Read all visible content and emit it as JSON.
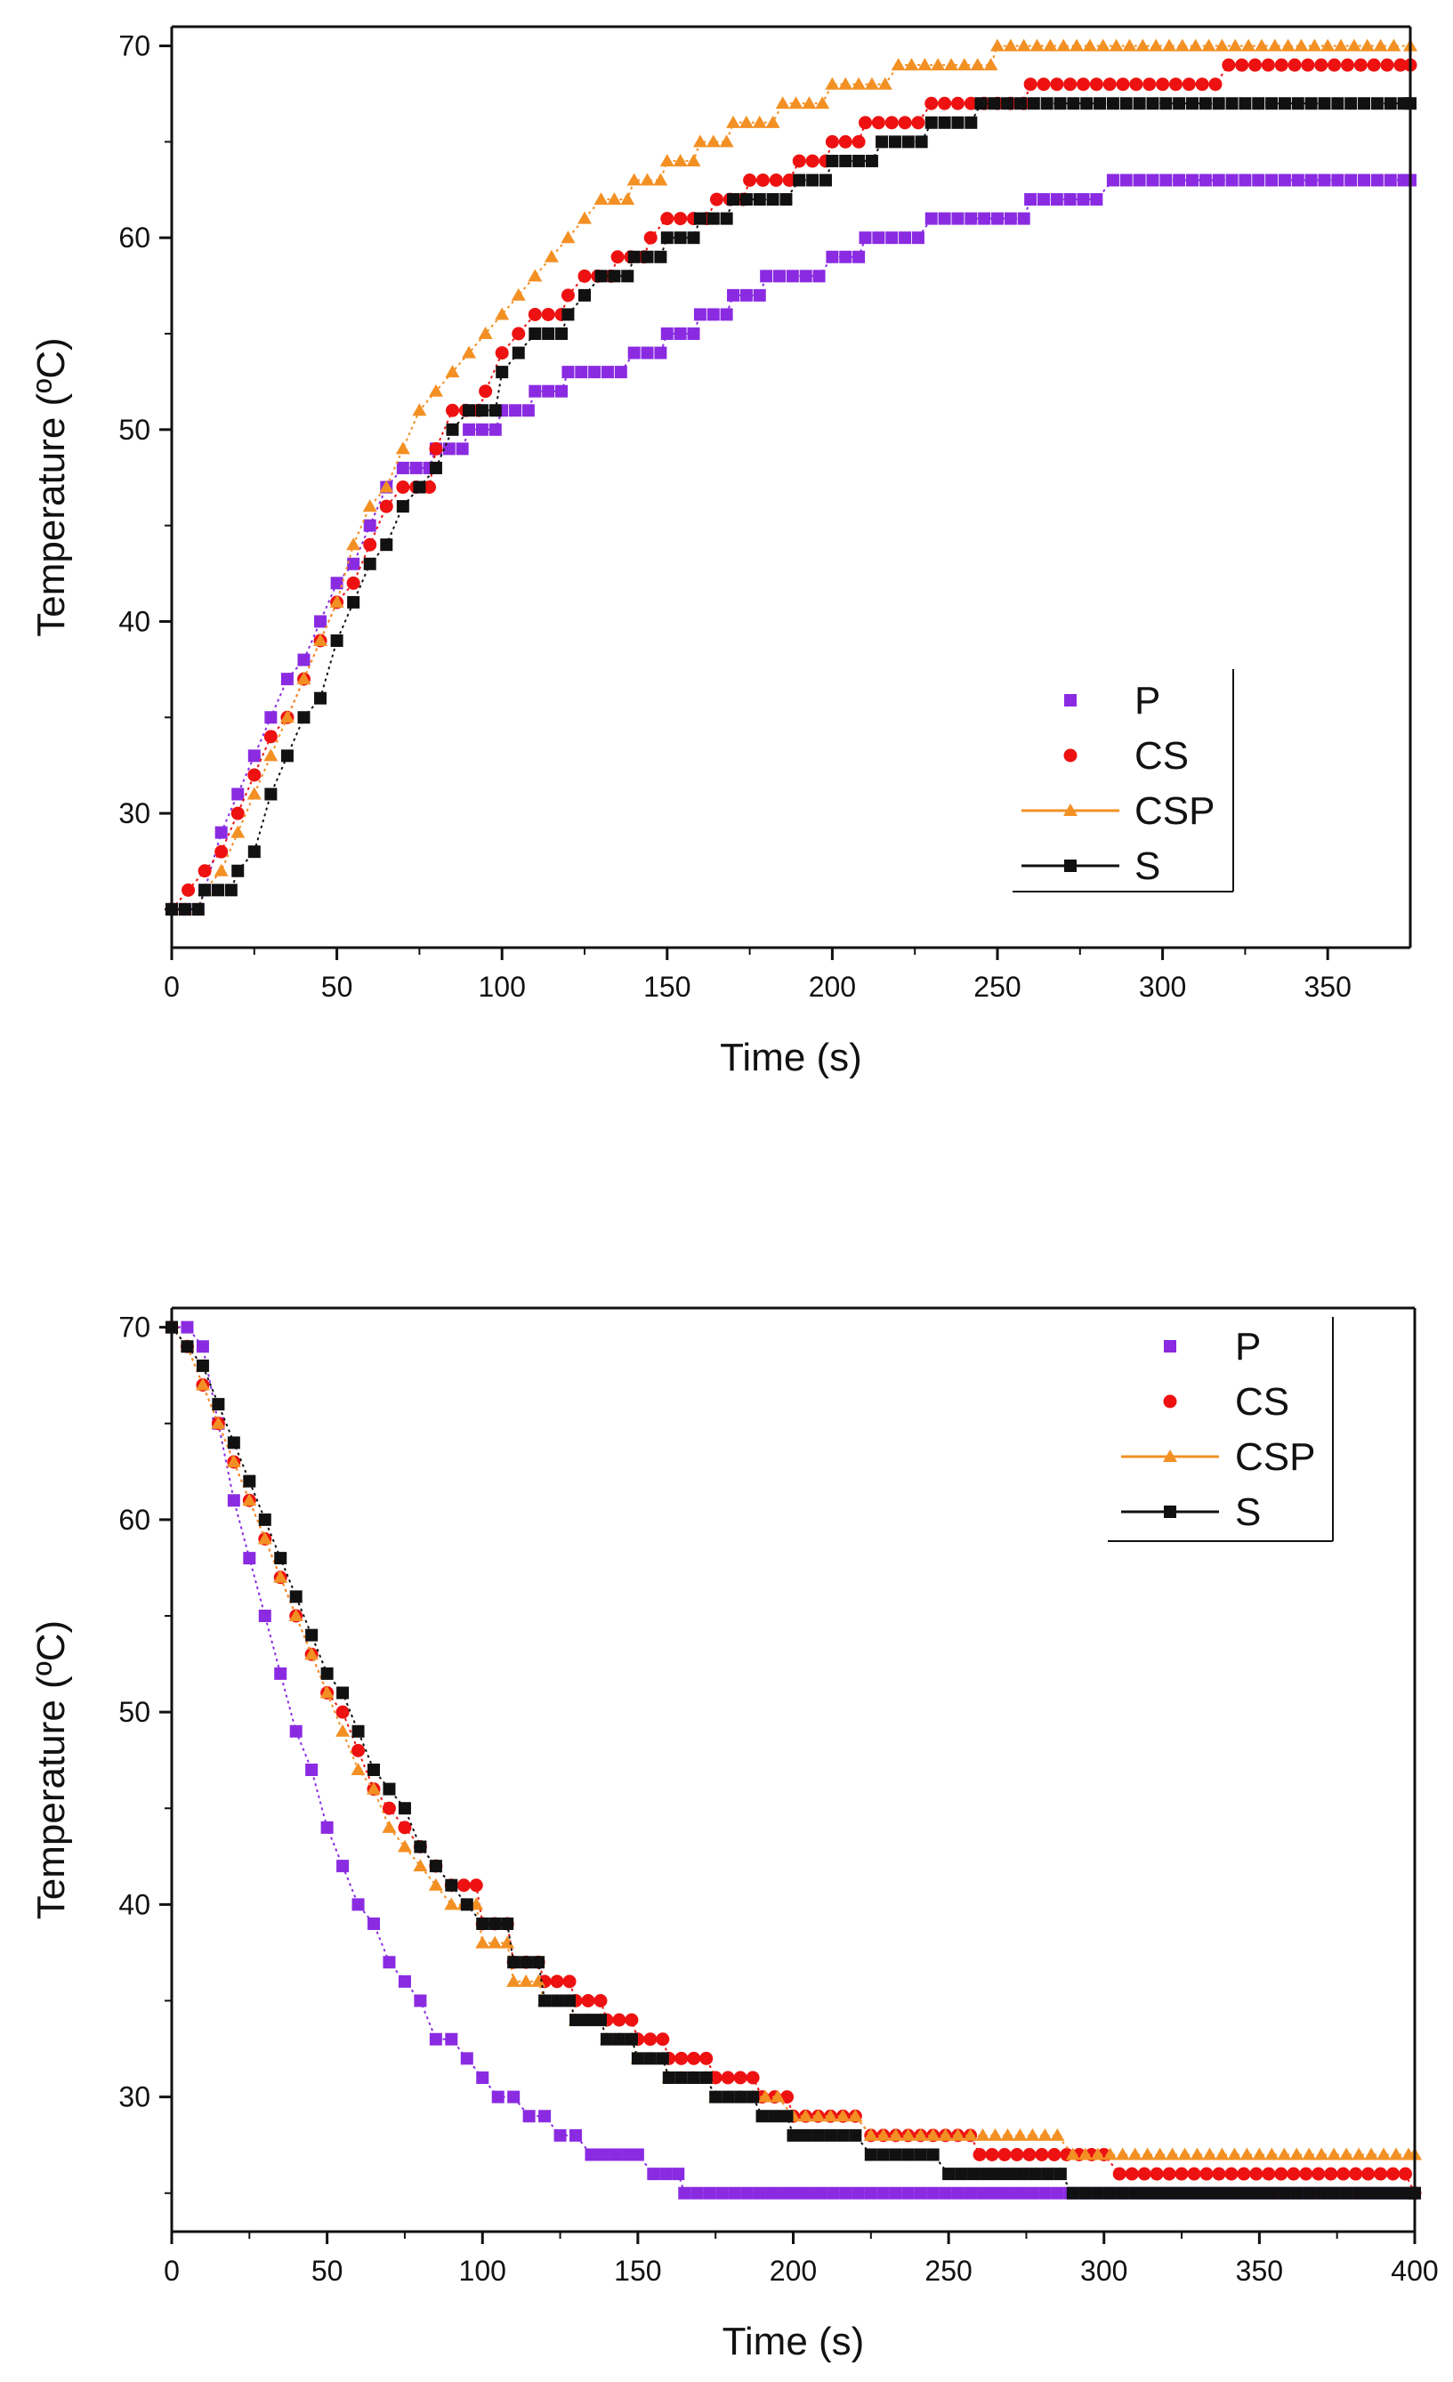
{
  "chart_data": [
    {
      "type": "line",
      "title": "",
      "xlabel": "Time (s)",
      "ylabel": "Temperature (ºC)",
      "xlim": [
        0,
        375
      ],
      "ylim": [
        23,
        71
      ],
      "xticks": [
        0,
        50,
        100,
        150,
        200,
        250,
        300,
        350
      ],
      "yticks": [
        30,
        40,
        50,
        60,
        70
      ],
      "xtick_labels": [
        "0",
        "50",
        "100",
        "150",
        "200",
        "250",
        "300",
        "350"
      ],
      "ytick_labels": [
        "30",
        "40",
        "50",
        "60",
        "70"
      ],
      "legend_position": "lower-right",
      "series": [
        {
          "name": "P",
          "color": "#8a2be2",
          "marker": "square",
          "points": [
            [
              0,
              25
            ],
            [
              10,
              26
            ],
            [
              15,
              29
            ],
            [
              20,
              31
            ],
            [
              25,
              33
            ],
            [
              30,
              35
            ],
            [
              35,
              37
            ],
            [
              40,
              38
            ],
            [
              45,
              40
            ],
            [
              50,
              42
            ],
            [
              55,
              43
            ],
            [
              60,
              45
            ],
            [
              65,
              47
            ],
            [
              70,
              48
            ],
            [
              80,
              49
            ],
            [
              90,
              50
            ],
            [
              100,
              51
            ],
            [
              110,
              52
            ],
            [
              120,
              53
            ],
            [
              140,
              54
            ],
            [
              150,
              55
            ],
            [
              160,
              56
            ],
            [
              170,
              57
            ],
            [
              180,
              58
            ],
            [
              200,
              59
            ],
            [
              210,
              60
            ],
            [
              230,
              61
            ],
            [
              260,
              62
            ],
            [
              285,
              63
            ],
            [
              375,
              63
            ]
          ]
        },
        {
          "name": "CS",
          "color": "#ee1111",
          "marker": "circle",
          "points": [
            [
              0,
              25
            ],
            [
              5,
              26
            ],
            [
              10,
              27
            ],
            [
              15,
              28
            ],
            [
              20,
              30
            ],
            [
              25,
              32
            ],
            [
              30,
              34
            ],
            [
              35,
              35
            ],
            [
              40,
              37
            ],
            [
              45,
              39
            ],
            [
              50,
              41
            ],
            [
              55,
              42
            ],
            [
              60,
              44
            ],
            [
              65,
              46
            ],
            [
              70,
              47
            ],
            [
              80,
              49
            ],
            [
              85,
              51
            ],
            [
              95,
              52
            ],
            [
              100,
              54
            ],
            [
              105,
              55
            ],
            [
              110,
              56
            ],
            [
              120,
              57
            ],
            [
              125,
              58
            ],
            [
              135,
              59
            ],
            [
              145,
              60
            ],
            [
              150,
              61
            ],
            [
              165,
              62
            ],
            [
              175,
              63
            ],
            [
              190,
              64
            ],
            [
              200,
              65
            ],
            [
              210,
              66
            ],
            [
              230,
              67
            ],
            [
              260,
              68
            ],
            [
              320,
              69
            ],
            [
              375,
              69
            ]
          ]
        },
        {
          "name": "CSP",
          "color": "#f39024",
          "marker": "triangle",
          "points": [
            [
              0,
              25
            ],
            [
              10,
              26
            ],
            [
              15,
              27
            ],
            [
              20,
              29
            ],
            [
              25,
              31
            ],
            [
              30,
              33
            ],
            [
              35,
              35
            ],
            [
              40,
              37
            ],
            [
              45,
              39
            ],
            [
              50,
              41
            ],
            [
              55,
              44
            ],
            [
              60,
              46
            ],
            [
              65,
              47
            ],
            [
              70,
              49
            ],
            [
              75,
              51
            ],
            [
              80,
              52
            ],
            [
              85,
              53
            ],
            [
              90,
              54
            ],
            [
              95,
              55
            ],
            [
              100,
              56
            ],
            [
              105,
              57
            ],
            [
              110,
              58
            ],
            [
              115,
              59
            ],
            [
              120,
              60
            ],
            [
              125,
              61
            ],
            [
              130,
              62
            ],
            [
              140,
              63
            ],
            [
              150,
              64
            ],
            [
              160,
              65
            ],
            [
              170,
              66
            ],
            [
              185,
              67
            ],
            [
              200,
              68
            ],
            [
              220,
              69
            ],
            [
              250,
              70
            ],
            [
              375,
              70
            ]
          ]
        },
        {
          "name": "S",
          "color": "#111111",
          "marker": "square",
          "points": [
            [
              0,
              25
            ],
            [
              10,
              26
            ],
            [
              20,
              27
            ],
            [
              25,
              28
            ],
            [
              30,
              31
            ],
            [
              35,
              33
            ],
            [
              40,
              35
            ],
            [
              45,
              36
            ],
            [
              50,
              39
            ],
            [
              55,
              41
            ],
            [
              60,
              43
            ],
            [
              65,
              44
            ],
            [
              70,
              46
            ],
            [
              75,
              47
            ],
            [
              80,
              48
            ],
            [
              85,
              50
            ],
            [
              90,
              51
            ],
            [
              100,
              53
            ],
            [
              105,
              54
            ],
            [
              110,
              55
            ],
            [
              120,
              56
            ],
            [
              125,
              57
            ],
            [
              130,
              58
            ],
            [
              140,
              59
            ],
            [
              150,
              60
            ],
            [
              160,
              61
            ],
            [
              170,
              62
            ],
            [
              190,
              63
            ],
            [
              200,
              64
            ],
            [
              215,
              65
            ],
            [
              230,
              66
            ],
            [
              245,
              67
            ],
            [
              375,
              67
            ]
          ]
        }
      ]
    },
    {
      "type": "line",
      "title": "",
      "xlabel": "Time (s)",
      "ylabel": "Temperature (ºC)",
      "xlim": [
        0,
        400
      ],
      "ylim": [
        23,
        71
      ],
      "xticks": [
        0,
        50,
        100,
        150,
        200,
        250,
        300,
        350,
        400
      ],
      "yticks": [
        30,
        40,
        50,
        60,
        70
      ],
      "xtick_labels": [
        "0",
        "50",
        "100",
        "150",
        "200",
        "250",
        "300",
        "350",
        "400"
      ],
      "ytick_labels": [
        "30",
        "40",
        "50",
        "60",
        "70"
      ],
      "legend_position": "top-right",
      "series": [
        {
          "name": "P",
          "color": "#8a2be2",
          "marker": "square",
          "points": [
            [
              0,
              70
            ],
            [
              5,
              70
            ],
            [
              10,
              69
            ],
            [
              15,
              65
            ],
            [
              20,
              61
            ],
            [
              25,
              58
            ],
            [
              30,
              55
            ],
            [
              35,
              52
            ],
            [
              40,
              49
            ],
            [
              45,
              47
            ],
            [
              50,
              44
            ],
            [
              55,
              42
            ],
            [
              60,
              40
            ],
            [
              65,
              39
            ],
            [
              70,
              37
            ],
            [
              75,
              36
            ],
            [
              80,
              35
            ],
            [
              85,
              33
            ],
            [
              90,
              33
            ],
            [
              95,
              32
            ],
            [
              100,
              31
            ],
            [
              105,
              30
            ],
            [
              110,
              30
            ],
            [
              115,
              29
            ],
            [
              120,
              29
            ],
            [
              125,
              28
            ],
            [
              130,
              28
            ],
            [
              135,
              27
            ],
            [
              150,
              27
            ],
            [
              155,
              26
            ],
            [
              165,
              25
            ],
            [
              400,
              25
            ]
          ]
        },
        {
          "name": "CS",
          "color": "#ee1111",
          "marker": "circle",
          "points": [
            [
              0,
              70
            ],
            [
              5,
              69
            ],
            [
              10,
              67
            ],
            [
              15,
              65
            ],
            [
              20,
              63
            ],
            [
              25,
              61
            ],
            [
              30,
              59
            ],
            [
              35,
              57
            ],
            [
              40,
              55
            ],
            [
              45,
              53
            ],
            [
              50,
              51
            ],
            [
              55,
              50
            ],
            [
              60,
              48
            ],
            [
              65,
              46
            ],
            [
              70,
              45
            ],
            [
              75,
              44
            ],
            [
              80,
              43
            ],
            [
              85,
              42
            ],
            [
              90,
              41
            ],
            [
              100,
              39
            ],
            [
              110,
              37
            ],
            [
              120,
              36
            ],
            [
              130,
              35
            ],
            [
              140,
              34
            ],
            [
              150,
              33
            ],
            [
              160,
              32
            ],
            [
              175,
              31
            ],
            [
              190,
              30
            ],
            [
              200,
              29
            ],
            [
              225,
              28
            ],
            [
              260,
              27
            ],
            [
              305,
              26
            ],
            [
              385,
              26
            ],
            [
              400,
              25
            ]
          ]
        },
        {
          "name": "CSP",
          "color": "#f39024",
          "marker": "triangle",
          "points": [
            [
              0,
              70
            ],
            [
              5,
              69
            ],
            [
              10,
              67
            ],
            [
              15,
              65
            ],
            [
              20,
              63
            ],
            [
              25,
              61
            ],
            [
              30,
              59
            ],
            [
              35,
              57
            ],
            [
              40,
              55
            ],
            [
              45,
              53
            ],
            [
              50,
              51
            ],
            [
              55,
              49
            ],
            [
              60,
              47
            ],
            [
              65,
              46
            ],
            [
              70,
              44
            ],
            [
              75,
              43
            ],
            [
              80,
              42
            ],
            [
              85,
              41
            ],
            [
              90,
              40
            ],
            [
              100,
              38
            ],
            [
              110,
              36
            ],
            [
              120,
              35
            ],
            [
              130,
              34
            ],
            [
              140,
              33
            ],
            [
              150,
              32
            ],
            [
              160,
              31
            ],
            [
              175,
              30
            ],
            [
              200,
              29
            ],
            [
              225,
              28
            ],
            [
              290,
              27
            ],
            [
              400,
              27
            ]
          ]
        },
        {
          "name": "S",
          "color": "#111111",
          "marker": "square",
          "points": [
            [
              0,
              70
            ],
            [
              5,
              69
            ],
            [
              10,
              68
            ],
            [
              15,
              66
            ],
            [
              20,
              64
            ],
            [
              25,
              62
            ],
            [
              30,
              60
            ],
            [
              35,
              58
            ],
            [
              40,
              56
            ],
            [
              45,
              54
            ],
            [
              50,
              52
            ],
            [
              55,
              51
            ],
            [
              60,
              49
            ],
            [
              65,
              47
            ],
            [
              70,
              46
            ],
            [
              75,
              45
            ],
            [
              80,
              43
            ],
            [
              85,
              42
            ],
            [
              90,
              41
            ],
            [
              95,
              40
            ],
            [
              100,
              39
            ],
            [
              110,
              37
            ],
            [
              120,
              35
            ],
            [
              130,
              34
            ],
            [
              140,
              33
            ],
            [
              150,
              32
            ],
            [
              160,
              31
            ],
            [
              175,
              30
            ],
            [
              190,
              29
            ],
            [
              200,
              28
            ],
            [
              225,
              27
            ],
            [
              250,
              26
            ],
            [
              290,
              25
            ],
            [
              400,
              25
            ]
          ]
        }
      ]
    }
  ]
}
